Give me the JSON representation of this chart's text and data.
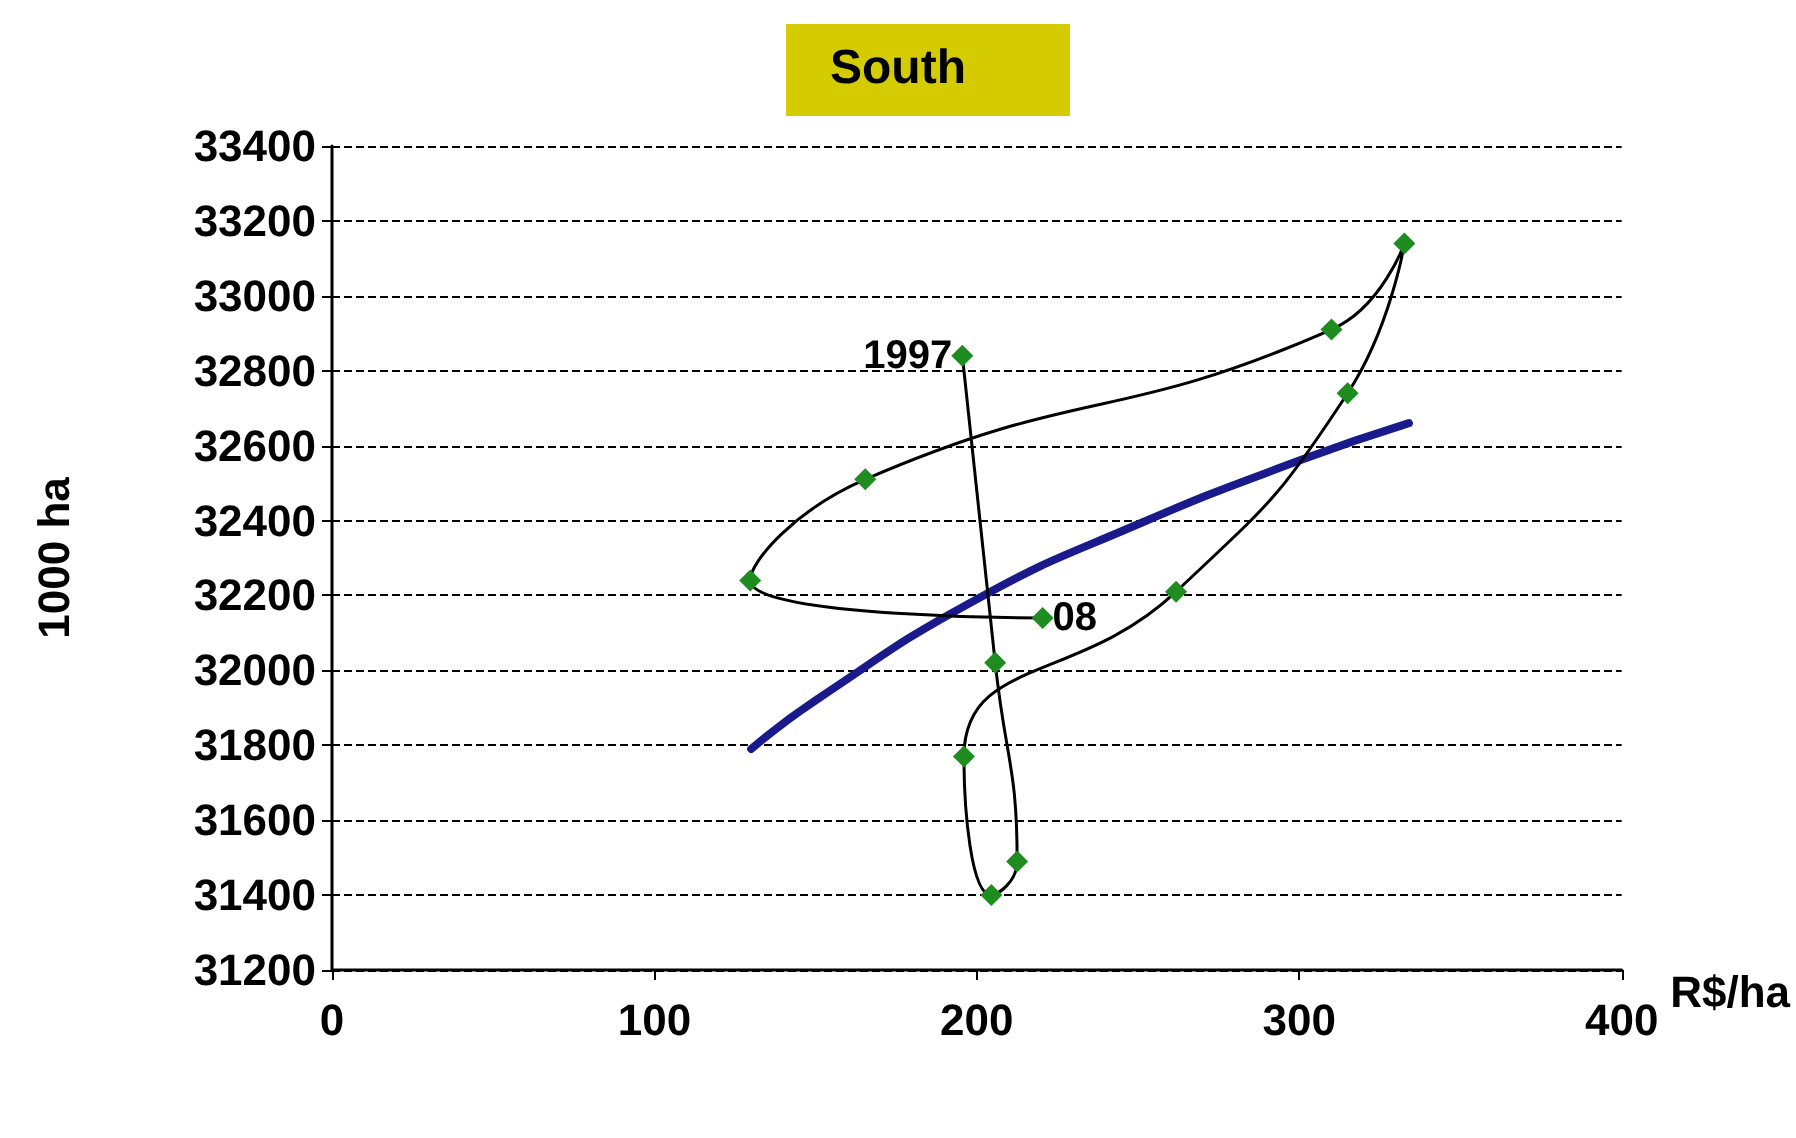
{
  "chart_data": {
    "type": "line",
    "title": "South",
    "xlabel": "R$/ha",
    "ylabel": "1000 ha",
    "xlim": [
      0,
      400
    ],
    "xticks": [
      0,
      100,
      200,
      300,
      400
    ],
    "ylim": [
      31200,
      33400
    ],
    "yticks": [
      31200,
      31400,
      31600,
      31800,
      32000,
      32200,
      32400,
      32600,
      32800,
      33000,
      33200,
      33400
    ],
    "grid": "y",
    "marker": "diamond",
    "series": [
      {
        "color": "#000000",
        "colors": [
          "#1e8c1e",
          "#1e8c1e",
          "#1e8c1e",
          "#1e8c1e",
          "#1e8c1e",
          "#1e8c1e",
          "#1e8c1e",
          "#1e8c1e",
          "#1e8c1e",
          "#1e8c1e",
          "#1e8c1e",
          "#1e8c1e"
        ],
        "x": [
          195.5,
          205.7,
          212.5,
          204.5,
          196,
          261.8,
          315,
          332.6,
          310,
          165.4,
          129.7,
          220.4
        ],
        "values": [
          32840,
          32020,
          31490,
          31400,
          31770,
          32210,
          32740,
          33140,
          32910,
          32510,
          32240,
          32140
        ]
      },
      {
        "color": "#1a1a8c",
        "marker": "none",
        "x": [
          130,
          150,
          200,
          250,
          300,
          334
        ],
        "values": [
          31790,
          31920,
          32190,
          32390,
          32560,
          32660
        ]
      }
    ],
    "annotations": [
      {
        "text": "1997",
        "x": 195.5,
        "y": 32840
      },
      {
        "text": "08",
        "x": 220.4,
        "y": 32140
      }
    ]
  }
}
